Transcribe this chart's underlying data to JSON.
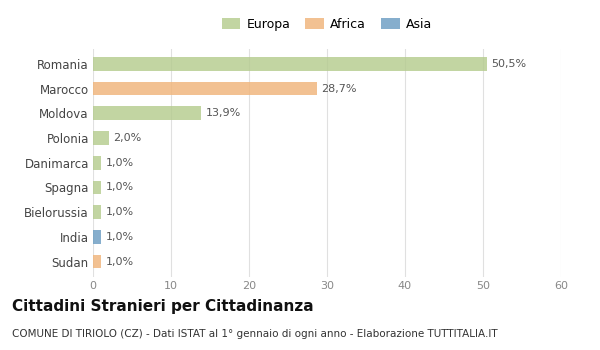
{
  "categories": [
    "Romania",
    "Marocco",
    "Moldova",
    "Polonia",
    "Danimarca",
    "Spagna",
    "Bielorussia",
    "India",
    "Sudan"
  ],
  "values": [
    50.5,
    28.7,
    13.9,
    2.0,
    1.0,
    1.0,
    1.0,
    1.0,
    1.0
  ],
  "labels": [
    "50,5%",
    "28,7%",
    "13,9%",
    "2,0%",
    "1,0%",
    "1,0%",
    "1,0%",
    "1,0%",
    "1,0%"
  ],
  "colors": [
    "#b5cc8e",
    "#f0b47a",
    "#b5cc8e",
    "#b5cc8e",
    "#b5cc8e",
    "#b5cc8e",
    "#b5cc8e",
    "#6b9dc2",
    "#f0b47a"
  ],
  "legend_labels": [
    "Europa",
    "Africa",
    "Asia"
  ],
  "legend_colors": [
    "#b5cc8e",
    "#f0b47a",
    "#6b9dc2"
  ],
  "xlim": [
    0,
    60
  ],
  "xticks": [
    0,
    10,
    20,
    30,
    40,
    50,
    60
  ],
  "title": "Cittadini Stranieri per Cittadinanza",
  "subtitle": "COMUNE DI TIRIOLO (CZ) - Dati ISTAT al 1° gennaio di ogni anno - Elaborazione TUTTITALIA.IT",
  "background_color": "#ffffff",
  "grid_color": "#e0e0e0",
  "bar_height": 0.55,
  "label_fontsize": 8,
  "ytick_fontsize": 8.5,
  "xtick_fontsize": 8,
  "title_fontsize": 11,
  "subtitle_fontsize": 7.5,
  "legend_fontsize": 9
}
